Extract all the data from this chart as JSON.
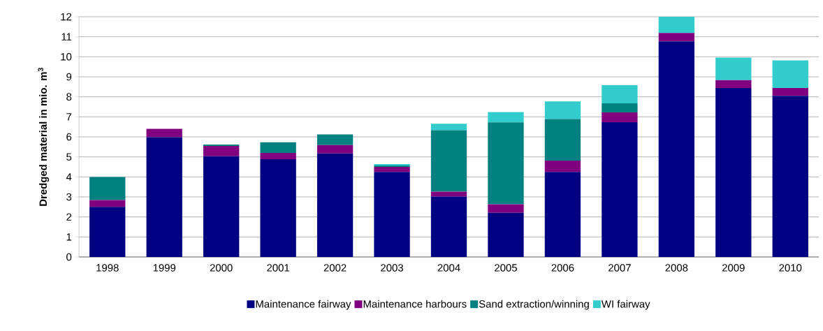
{
  "chart_data": {
    "type": "bar",
    "stacked": true,
    "ylabel": "Dredged material in mio. m$^{3}$",
    "categories": [
      "1998",
      "1999",
      "2000",
      "2001",
      "2002",
      "2003",
      "2004",
      "2005",
      "2006",
      "2007",
      "2008",
      "2009",
      "2010"
    ],
    "series": [
      {
        "name": "Maintenance fairway",
        "color": "#000080",
        "values": [
          2.5,
          5.98,
          5.03,
          4.88,
          5.17,
          4.25,
          3.02,
          2.21,
          4.25,
          6.73,
          10.77,
          8.44,
          8.05
        ]
      },
      {
        "name": "Maintenance harbours",
        "color": "#800080",
        "values": [
          0.34,
          0.42,
          0.52,
          0.32,
          0.42,
          0.25,
          0.24,
          0.42,
          0.56,
          0.49,
          0.42,
          0.39,
          0.39
        ]
      },
      {
        "name": "Sand extraction/winning",
        "color": "#008080",
        "values": [
          1.15,
          0,
          0.07,
          0.53,
          0.53,
          0.07,
          3.07,
          4.09,
          2.08,
          0.45,
          0,
          0,
          0
        ]
      },
      {
        "name": "WI fairway",
        "color": "#33CCCC",
        "values": [
          0,
          0,
          0,
          0,
          0,
          0.07,
          0.32,
          0.52,
          0.88,
          0.91,
          0.81,
          1.13,
          1.38
        ]
      }
    ],
    "ylim": [
      0,
      12
    ],
    "yticks": [
      0,
      1,
      2,
      3,
      4,
      5,
      6,
      7,
      8,
      9,
      10,
      11,
      12
    ],
    "grid": "y",
    "legend": "bottom"
  }
}
